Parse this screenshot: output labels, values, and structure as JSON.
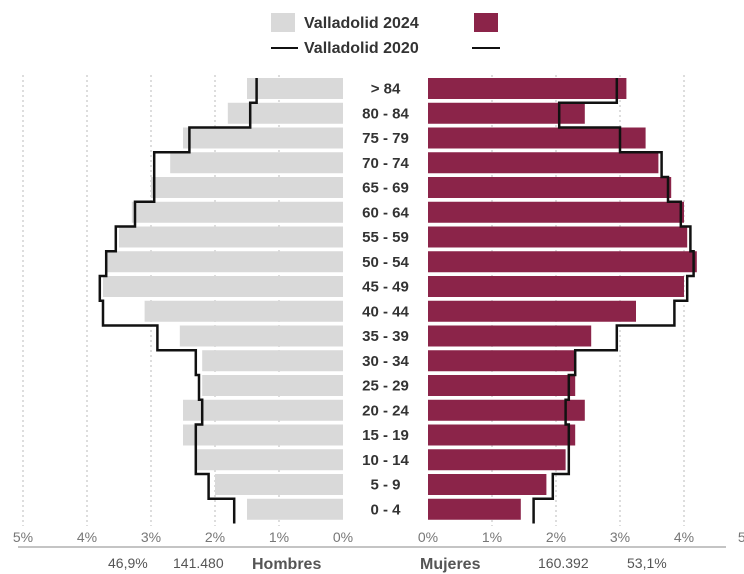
{
  "chart_data": {
    "type": "bar",
    "title": "",
    "legend": {
      "series_2024": "Valladolid 2024",
      "series_2020": "Valladolid 2020",
      "placement": "top-center"
    },
    "colors": {
      "hombres_2024": "#d9d9d9",
      "mujeres_2024": "#8b2449",
      "outline_2020": "#111111",
      "grid": "#bbbbbb"
    },
    "categories": [
      "> 84",
      "80 - 84",
      "75 - 79",
      "70 - 74",
      "65 - 69",
      "60 - 64",
      "55 - 59",
      "50 - 54",
      "45 - 49",
      "40 - 44",
      "35 - 39",
      "30 - 34",
      "25 - 29",
      "20 - 24",
      "15 - 19",
      "10 - 14",
      "5 - 9",
      "0 - 4"
    ],
    "series": [
      {
        "name": "Hombres",
        "values": [
          1.5,
          1.8,
          2.5,
          2.7,
          3.0,
          3.3,
          3.5,
          3.7,
          3.75,
          3.1,
          2.55,
          2.2,
          2.2,
          2.5,
          2.5,
          2.3,
          2.0,
          1.5
        ]
      },
      {
        "name": "Mujeres",
        "values": [
          3.1,
          2.45,
          3.4,
          3.6,
          3.8,
          4.0,
          4.05,
          4.2,
          4.0,
          3.25,
          2.55,
          2.3,
          2.3,
          2.45,
          2.3,
          2.15,
          1.85,
          1.45
        ]
      },
      {
        "name": "Hombres",
        "outline": true,
        "values": [
          1.35,
          1.45,
          2.4,
          2.95,
          2.95,
          3.25,
          3.55,
          3.7,
          3.8,
          3.75,
          2.9,
          2.3,
          2.25,
          2.2,
          2.3,
          2.3,
          2.1,
          1.7
        ]
      },
      {
        "name": "Mujeres",
        "outline": true,
        "values": [
          2.95,
          2.05,
          3.0,
          3.65,
          3.75,
          3.95,
          4.1,
          4.15,
          4.05,
          3.85,
          2.95,
          2.3,
          2.2,
          2.15,
          2.2,
          2.2,
          1.95,
          1.65
        ]
      }
    ],
    "xlim": [
      0,
      5
    ],
    "x_ticks_left": [
      "5%",
      "4%",
      "3%",
      "2%",
      "1%",
      "0%"
    ],
    "x_ticks_right": [
      "0%",
      "1%",
      "2%",
      "3%",
      "4%",
      "5%"
    ],
    "grid": true,
    "footer": {
      "hombres_pct": "46,9%",
      "hombres_total": "141.480",
      "hombres_label": "Hombres",
      "mujeres_label": "Mujeres",
      "mujeres_total": "160.392",
      "mujeres_pct": "53,1%"
    }
  }
}
